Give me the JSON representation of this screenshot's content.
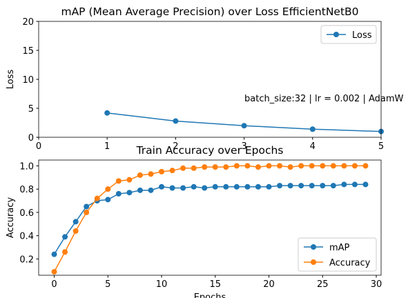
{
  "chart_data": [
    {
      "type": "line",
      "title": "mAP (Mean Average Precision) over Loss EfficientNetB0",
      "ylabel": "Loss",
      "annotation": "batch_size:32 | lr = 0.002 | AdamW",
      "x": [
        1,
        2,
        3,
        4,
        5
      ],
      "series": [
        {
          "name": "Loss",
          "color": "#1f77b4",
          "values": [
            4.2,
            2.8,
            2.0,
            1.4,
            1.0
          ]
        }
      ],
      "xlim": [
        0,
        5
      ],
      "xticks": [
        0,
        1,
        2,
        3,
        4,
        5
      ],
      "ylim": [
        0,
        20
      ],
      "yticks": [
        0,
        5,
        10,
        15,
        20
      ],
      "legend": "upper-right"
    },
    {
      "type": "line",
      "title": "Train Accuracy over Epochs",
      "xlabel": "Epochs",
      "ylabel": "Accuracy",
      "x": [
        0,
        1,
        2,
        3,
        4,
        5,
        6,
        7,
        8,
        9,
        10,
        11,
        12,
        13,
        14,
        15,
        16,
        17,
        18,
        19,
        20,
        21,
        22,
        23,
        24,
        25,
        26,
        27,
        28,
        29
      ],
      "series": [
        {
          "name": "mAP",
          "color": "#1f77b4",
          "values": [
            0.24,
            0.39,
            0.52,
            0.65,
            0.7,
            0.71,
            0.76,
            0.77,
            0.79,
            0.79,
            0.82,
            0.81,
            0.81,
            0.82,
            0.81,
            0.82,
            0.82,
            0.82,
            0.82,
            0.82,
            0.82,
            0.83,
            0.83,
            0.83,
            0.83,
            0.83,
            0.83,
            0.84,
            0.84,
            0.84
          ]
        },
        {
          "name": "Accuracy",
          "color": "#ff7f0e",
          "values": [
            0.09,
            0.26,
            0.44,
            0.6,
            0.72,
            0.8,
            0.87,
            0.88,
            0.92,
            0.93,
            0.95,
            0.96,
            0.98,
            0.98,
            0.99,
            0.99,
            0.99,
            1.0,
            1.0,
            0.99,
            1.0,
            1.0,
            0.99,
            1.0,
            1.0,
            1.0,
            1.0,
            1.0,
            1.0,
            1.0
          ]
        }
      ],
      "xlim": [
        -1.45,
        30.45
      ],
      "xticks": [
        0,
        5,
        10,
        15,
        20,
        25,
        30
      ],
      "ylim": [
        0.06,
        1.05
      ],
      "yticks": [
        0.2,
        0.4,
        0.6,
        0.8,
        {
          "value": 1,
          "label": "1.0"
        }
      ],
      "legend": "lower-right"
    }
  ]
}
